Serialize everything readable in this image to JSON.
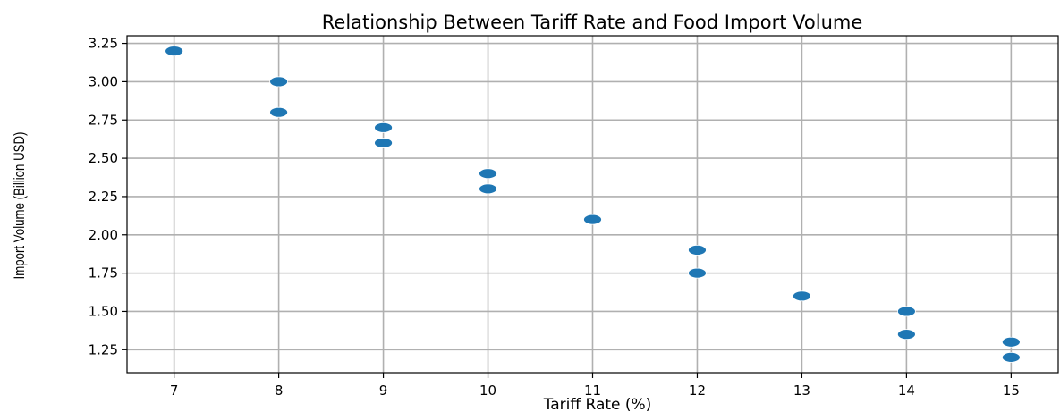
{
  "chart_data": {
    "type": "scatter",
    "title": "Relationship Between Tariff Rate and Food Import Volume",
    "xlabel": "Tariff Rate (%)",
    "ylabel": "Import Volume (Billion USD)",
    "xlim": [
      6.55,
      15.45
    ],
    "ylim": [
      1.1,
      3.3
    ],
    "xticks": [
      7,
      8,
      9,
      10,
      11,
      12,
      13,
      14,
      15
    ],
    "xtick_labels": [
      "7",
      "8",
      "9",
      "10",
      "11",
      "12",
      "13",
      "14",
      "15"
    ],
    "yticks": [
      1.25,
      1.5,
      1.75,
      2.0,
      2.25,
      2.5,
      2.75,
      3.0,
      3.25
    ],
    "ytick_labels": [
      "1.25",
      "1.50",
      "1.75",
      "2.00",
      "2.25",
      "2.50",
      "2.75",
      "3.00",
      "3.25"
    ],
    "grid": true,
    "marker_color": "#1f77b4",
    "points": [
      {
        "x": 7,
        "y": 3.2
      },
      {
        "x": 8,
        "y": 3.0
      },
      {
        "x": 8,
        "y": 2.8
      },
      {
        "x": 9,
        "y": 2.7
      },
      {
        "x": 9,
        "y": 2.6
      },
      {
        "x": 10,
        "y": 2.4
      },
      {
        "x": 10,
        "y": 2.3
      },
      {
        "x": 11,
        "y": 2.1
      },
      {
        "x": 12,
        "y": 1.9
      },
      {
        "x": 12,
        "y": 1.75
      },
      {
        "x": 13,
        "y": 1.6
      },
      {
        "x": 14,
        "y": 1.5
      },
      {
        "x": 14,
        "y": 1.35
      },
      {
        "x": 15,
        "y": 1.3
      },
      {
        "x": 15,
        "y": 1.2
      }
    ]
  }
}
